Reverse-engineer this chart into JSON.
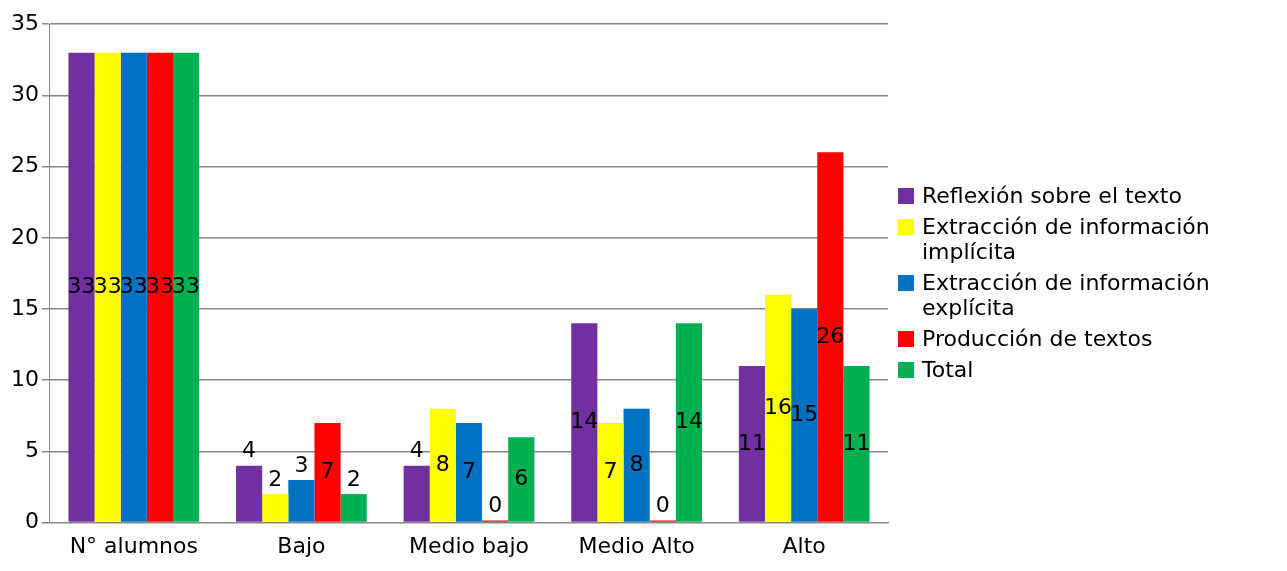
{
  "chart_data": {
    "type": "bar",
    "categories": [
      "N° alumnos",
      "Bajo",
      "Medio bajo",
      "Medio Alto",
      "Alto"
    ],
    "series": [
      {
        "name": "Reflexión sobre el texto",
        "color": "#7030a0",
        "values": [
          33,
          4,
          4,
          14,
          11
        ]
      },
      {
        "name": "Extracción de información implícita",
        "color": "#ffff00",
        "values": [
          33,
          2,
          8,
          7,
          16
        ]
      },
      {
        "name": "Extracción de información explícita",
        "color": "#0070c0",
        "values": [
          33,
          3,
          7,
          8,
          15
        ]
      },
      {
        "name": "Producción de textos",
        "color": "#ff0000",
        "values": [
          33,
          7,
          0,
          0,
          26
        ]
      },
      {
        "name": "Total",
        "color": "#00b050",
        "values": [
          33,
          2,
          6,
          14,
          11
        ]
      }
    ],
    "ylim": [
      0,
      35
    ],
    "yticks": [
      0,
      5,
      10,
      15,
      20,
      25,
      30,
      35
    ],
    "grid": "y",
    "legend": "right",
    "data_labels": true
  }
}
